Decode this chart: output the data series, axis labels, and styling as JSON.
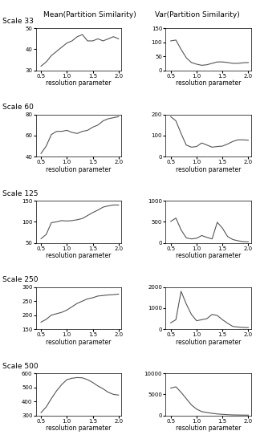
{
  "col_titles": [
    "Mean(Partition Similarity)",
    "Var(Partition Similarity)"
  ],
  "row_labels": [
    "Scale 33",
    "Scale 60",
    "Scale 125",
    "Scale 250",
    "Scale 500"
  ],
  "xlabel": "resolution parameter",
  "xlim": [
    0.4,
    2.05
  ],
  "xticks": [
    0.5,
    1.0,
    1.5,
    2.0
  ],
  "rows": [
    {
      "mean_ylim": [
        30,
        50
      ],
      "mean_yticks": [
        30,
        40,
        50
      ],
      "mean_x": [
        0.5,
        0.6,
        0.7,
        0.8,
        0.9,
        1.0,
        1.1,
        1.2,
        1.3,
        1.4,
        1.5,
        1.6,
        1.7,
        1.8,
        1.9,
        2.0
      ],
      "mean_y": [
        32,
        34,
        37,
        39,
        41,
        43,
        44,
        46,
        47,
        44,
        44,
        45,
        44,
        45,
        46,
        45
      ],
      "var_ylim": [
        0,
        150
      ],
      "var_yticks": [
        0,
        50,
        100,
        150
      ],
      "var_x": [
        0.5,
        0.6,
        0.7,
        0.8,
        0.9,
        1.0,
        1.1,
        1.2,
        1.3,
        1.4,
        1.5,
        1.6,
        1.7,
        1.8,
        1.9,
        2.0
      ],
      "var_y": [
        105,
        108,
        75,
        45,
        28,
        22,
        18,
        20,
        25,
        30,
        30,
        28,
        25,
        25,
        27,
        28
      ]
    },
    {
      "mean_ylim": [
        40,
        80
      ],
      "mean_yticks": [
        40,
        60,
        80
      ],
      "mean_x": [
        0.5,
        0.6,
        0.7,
        0.8,
        0.9,
        1.0,
        1.1,
        1.2,
        1.3,
        1.4,
        1.5,
        1.6,
        1.7,
        1.8,
        1.9,
        2.0
      ],
      "mean_y": [
        43,
        50,
        61,
        64,
        64,
        65,
        63,
        62,
        64,
        65,
        68,
        70,
        74,
        76,
        77,
        78
      ],
      "var_ylim": [
        0,
        200
      ],
      "var_yticks": [
        0,
        100,
        200
      ],
      "var_x": [
        0.5,
        0.6,
        0.7,
        0.8,
        0.9,
        1.0,
        1.1,
        1.2,
        1.3,
        1.4,
        1.5,
        1.6,
        1.7,
        1.8,
        1.9,
        2.0
      ],
      "var_y": [
        190,
        170,
        110,
        55,
        45,
        48,
        65,
        55,
        45,
        48,
        50,
        60,
        72,
        80,
        80,
        78
      ]
    },
    {
      "mean_ylim": [
        50,
        150
      ],
      "mean_yticks": [
        50,
        100,
        150
      ],
      "mean_x": [
        0.5,
        0.6,
        0.7,
        0.8,
        0.9,
        1.0,
        1.1,
        1.2,
        1.3,
        1.4,
        1.5,
        1.6,
        1.7,
        1.8,
        1.9,
        2.0
      ],
      "mean_y": [
        60,
        70,
        98,
        100,
        103,
        102,
        103,
        105,
        108,
        115,
        122,
        128,
        135,
        138,
        140,
        140
      ],
      "var_ylim": [
        0,
        1000
      ],
      "var_yticks": [
        0,
        500,
        1000
      ],
      "var_x": [
        0.5,
        0.6,
        0.7,
        0.8,
        0.9,
        1.0,
        1.1,
        1.2,
        1.3,
        1.4,
        1.5,
        1.6,
        1.7,
        1.8,
        1.9,
        2.0
      ],
      "var_y": [
        510,
        590,
        310,
        120,
        95,
        110,
        175,
        130,
        95,
        490,
        350,
        150,
        80,
        50,
        30,
        25
      ]
    },
    {
      "mean_ylim": [
        150,
        300
      ],
      "mean_yticks": [
        150,
        200,
        250,
        300
      ],
      "mean_x": [
        0.5,
        0.6,
        0.7,
        0.8,
        0.9,
        1.0,
        1.1,
        1.2,
        1.3,
        1.4,
        1.5,
        1.6,
        1.7,
        1.8,
        1.9,
        2.0
      ],
      "mean_y": [
        175,
        185,
        200,
        205,
        210,
        218,
        230,
        242,
        250,
        258,
        262,
        268,
        270,
        272,
        273,
        275
      ],
      "var_ylim": [
        0,
        2000
      ],
      "var_yticks": [
        0,
        1000,
        2000
      ],
      "var_x": [
        0.5,
        0.6,
        0.7,
        0.8,
        0.9,
        1.0,
        1.1,
        1.2,
        1.3,
        1.4,
        1.5,
        1.6,
        1.7,
        1.8,
        1.9,
        2.0
      ],
      "var_y": [
        300,
        450,
        1800,
        1200,
        700,
        400,
        450,
        500,
        700,
        650,
        450,
        280,
        130,
        100,
        80,
        75
      ]
    },
    {
      "mean_ylim": [
        300,
        600
      ],
      "mean_yticks": [
        300,
        400,
        500,
        600
      ],
      "mean_x": [
        0.5,
        0.6,
        0.7,
        0.8,
        0.9,
        1.0,
        1.1,
        1.2,
        1.3,
        1.4,
        1.5,
        1.6,
        1.7,
        1.8,
        1.9,
        2.0
      ],
      "mean_y": [
        320,
        360,
        420,
        475,
        520,
        555,
        565,
        570,
        568,
        555,
        535,
        510,
        490,
        465,
        450,
        445
      ],
      "var_ylim": [
        0,
        10000
      ],
      "var_yticks": [
        0,
        5000,
        10000
      ],
      "var_x": [
        0.5,
        0.6,
        0.7,
        0.8,
        0.9,
        1.0,
        1.1,
        1.2,
        1.3,
        1.4,
        1.5,
        1.6,
        1.7,
        1.8,
        1.9,
        2.0
      ],
      "var_y": [
        6500,
        6800,
        5500,
        4000,
        2500,
        1500,
        900,
        700,
        500,
        350,
        250,
        175,
        120,
        100,
        80,
        70
      ]
    }
  ],
  "line_color": "#555555",
  "line_width": 0.8,
  "font_size_title": 6.5,
  "font_size_label": 5.5,
  "font_size_tick": 5.0,
  "font_size_row_label": 6.5
}
